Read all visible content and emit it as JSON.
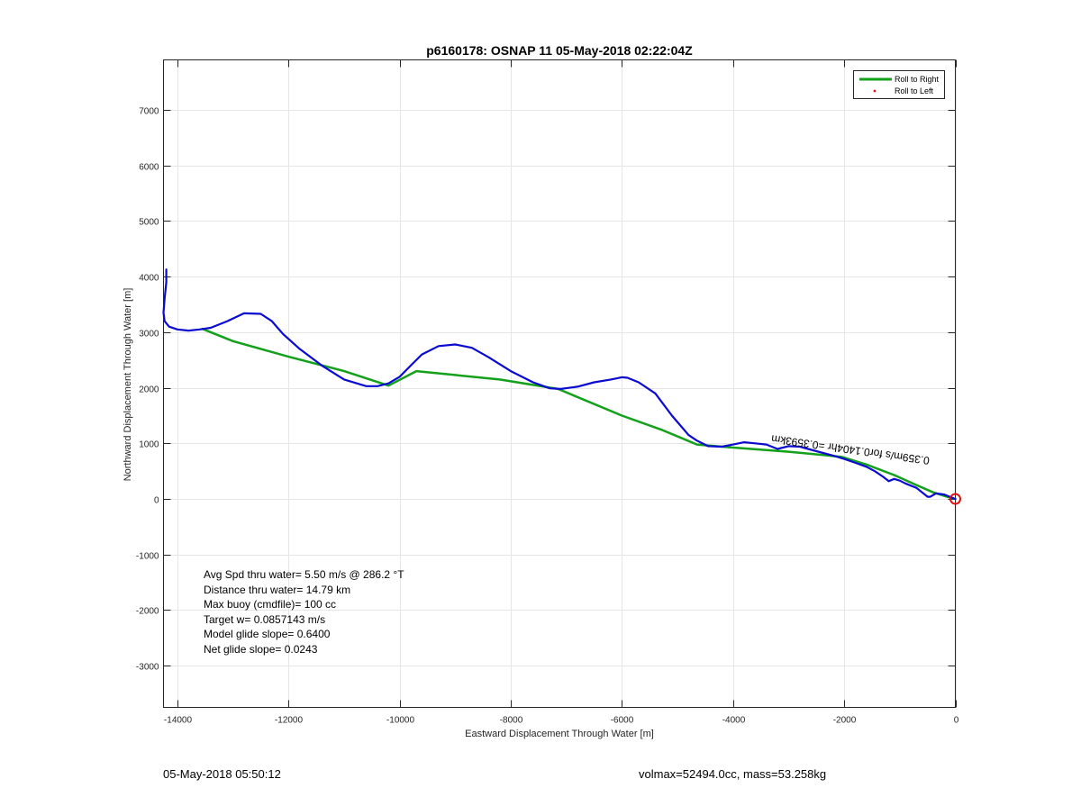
{
  "chart_data": {
    "type": "line",
    "title": "p6160178: OSNAP 11 05-May-2018 02:22:04Z",
    "xlabel": "Eastward Displacement Through Water [m]",
    "ylabel": "Northward Displacement Through Water [m]",
    "xlim": [
      -14250,
      0
    ],
    "ylim": [
      -3750,
      7900
    ],
    "xticks": [
      -14000,
      -12000,
      -10000,
      -8000,
      -6000,
      -4000,
      -2000,
      0
    ],
    "yticks": [
      -3000,
      -2000,
      -1000,
      0,
      1000,
      2000,
      3000,
      4000,
      5000,
      6000,
      7000
    ],
    "grid": true,
    "legend_position": "top-right",
    "legend": [
      {
        "label": "Roll to Right",
        "color": "#13a01a",
        "style": "line"
      },
      {
        "label": "Roll to Left",
        "color": "#e01010",
        "style": "dot"
      }
    ],
    "series": [
      {
        "name": "Roll to Right",
        "color": "#13a01a",
        "x": [
          0,
          -150,
          -400,
          -700,
          -1100,
          -1600,
          -2050,
          -3000,
          -4050,
          -4650,
          -5300,
          -6000,
          -7150,
          -8200,
          -9700,
          -10200,
          -11000,
          -12000,
          -13000,
          -13550
        ],
        "y": [
          0,
          40,
          120,
          250,
          430,
          620,
          760,
          850,
          930,
          980,
          1250,
          1500,
          1980,
          2150,
          2300,
          2040,
          2300,
          2560,
          2840,
          3060
        ]
      },
      {
        "name": "",
        "color": "#0a0ad0",
        "x": [
          0,
          -100,
          -200,
          -350,
          -450,
          -500,
          -700,
          -900,
          -1000,
          -1100,
          -1200,
          -1300,
          -1450,
          -1600,
          -1800,
          -2000,
          -2200,
          -2500,
          -2800,
          -3000,
          -3200,
          -3400,
          -3600,
          -3800,
          -4000,
          -4200,
          -4450,
          -4650,
          -4800,
          -5100,
          -5400,
          -5700,
          -5900,
          -6000,
          -6200,
          -6500,
          -6800,
          -7100,
          -7300,
          -7600,
          -8000,
          -8400,
          -8700,
          -9000,
          -9300,
          -9600,
          -9800,
          -10000,
          -10200,
          -10400,
          -10600,
          -11000,
          -11400,
          -11800,
          -12100,
          -12300,
          -12500,
          -12800,
          -13100,
          -13400,
          -13600,
          -13800,
          -14000,
          -14150,
          -14230,
          -14250,
          -14230,
          -14200,
          -14200
        ],
        "y": [
          0,
          40,
          80,
          100,
          40,
          40,
          200,
          280,
          330,
          360,
          320,
          400,
          500,
          580,
          650,
          720,
          780,
          860,
          940,
          950,
          900,
          980,
          1000,
          1020,
          980,
          940,
          950,
          1050,
          1150,
          1500,
          1900,
          2100,
          2180,
          2190,
          2150,
          2100,
          2020,
          1980,
          1990,
          2100,
          2300,
          2550,
          2720,
          2780,
          2750,
          2600,
          2400,
          2200,
          2080,
          2030,
          2030,
          2150,
          2400,
          2700,
          2970,
          3200,
          3330,
          3340,
          3200,
          3080,
          3050,
          3030,
          3050,
          3100,
          3200,
          3350,
          3600,
          3900,
          4130
        ]
      }
    ],
    "annotations": [
      {
        "text": "0.359m/s for0.1404hr =0.3593km",
        "x": -3300,
        "y": 1150,
        "rotation": -172
      }
    ],
    "end_marker": {
      "x": 0,
      "y": 0,
      "color": "#e01010"
    },
    "text_box": [
      "Avg Spd thru water=  5.50 m/s @ 286.2 °T",
      "Distance thru water= 14.79 km",
      "Max buoy (cmdfile)= 100 cc",
      "Target w= 0.0857143 m/s",
      "Model glide slope= 0.6400",
      "Net glide slope= 0.0243"
    ]
  },
  "footer": {
    "left": "05-May-2018 05:50:12",
    "right": "volmax=52494.0cc, mass=53.258kg"
  }
}
